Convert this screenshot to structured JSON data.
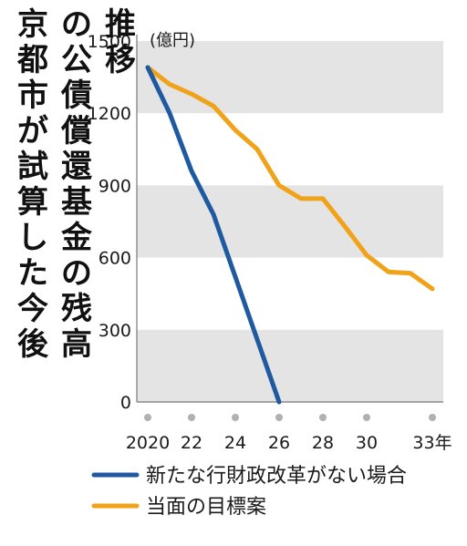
{
  "chart_data": {
    "type": "line",
    "title": "京都市が試算した今後の公債償還基金の残高推移",
    "unit_label": "(億円)",
    "ylim": [
      0,
      1500
    ],
    "yticks": [
      "1500",
      "1200",
      "900",
      "600",
      "300",
      "0"
    ],
    "ytick_values": [
      1500,
      1200,
      900,
      600,
      300,
      0
    ],
    "xlim": [
      2020,
      2033
    ],
    "xtick_values": [
      2020,
      2022,
      2024,
      2026,
      2028,
      2030,
      2033
    ],
    "xticks": [
      "2020",
      "22",
      "24",
      "26",
      "28",
      "30",
      "33年"
    ],
    "grid": "alternating horizontal bands",
    "series": [
      {
        "name": "新たな行財政改革がない場合",
        "color": "#1f5aa0",
        "x": [
          2020,
          2021,
          2022,
          2023,
          2024,
          2025,
          2026
        ],
        "y": [
          1390,
          1200,
          960,
          780,
          520,
          260,
          0
        ]
      },
      {
        "name": "当面の目標案",
        "color": "#f0a218",
        "x": [
          2020,
          2021,
          2022,
          2023,
          2024,
          2025,
          2026,
          2027,
          2028,
          2029,
          2030,
          2031,
          2032,
          2033
        ],
        "y": [
          1390,
          1320,
          1280,
          1230,
          1130,
          1050,
          900,
          845,
          845,
          730,
          610,
          540,
          535,
          470
        ]
      }
    ],
    "legend_position": "bottom"
  }
}
